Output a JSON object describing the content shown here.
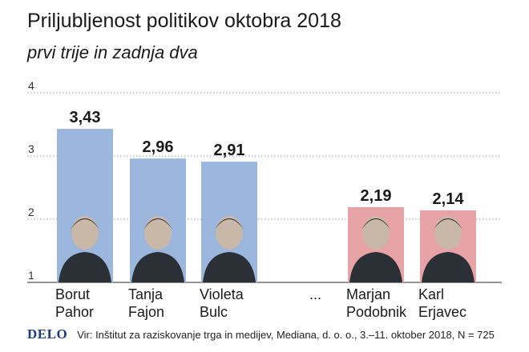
{
  "title": "Priljubljenost politikov oktobra 2018",
  "subtitle": "prvi trije in zadnja dva",
  "chart_data": {
    "type": "bar",
    "ylim": [
      1,
      4
    ],
    "yticks": [
      "1",
      "2",
      "3",
      "4"
    ],
    "categories": [
      {
        "line1": "Borut",
        "line2": "Pahor"
      },
      {
        "line1": "Tanja",
        "line2": "Fajon"
      },
      {
        "line1": "Violeta",
        "line2": "Bulc"
      },
      {
        "line1": "Marjan",
        "line2": "Podobnik"
      },
      {
        "line1": "Karl",
        "line2": "Erjavec"
      }
    ],
    "values": [
      3.43,
      2.96,
      2.91,
      2.19,
      2.14
    ],
    "value_labels": [
      "3,43",
      "2,96",
      "2,91",
      "2,19",
      "2,14"
    ],
    "separator_label": "...",
    "colors": {
      "top": "#9bb7dd",
      "bottom": "#e8a3a6"
    },
    "grid": "dotted"
  },
  "footer": {
    "logo": "DELO",
    "source": "Vir: Inštitut za raziskovanje trga in medijev, Mediana, d. o. o., 3.–11. oktober 2018, N = 725"
  }
}
